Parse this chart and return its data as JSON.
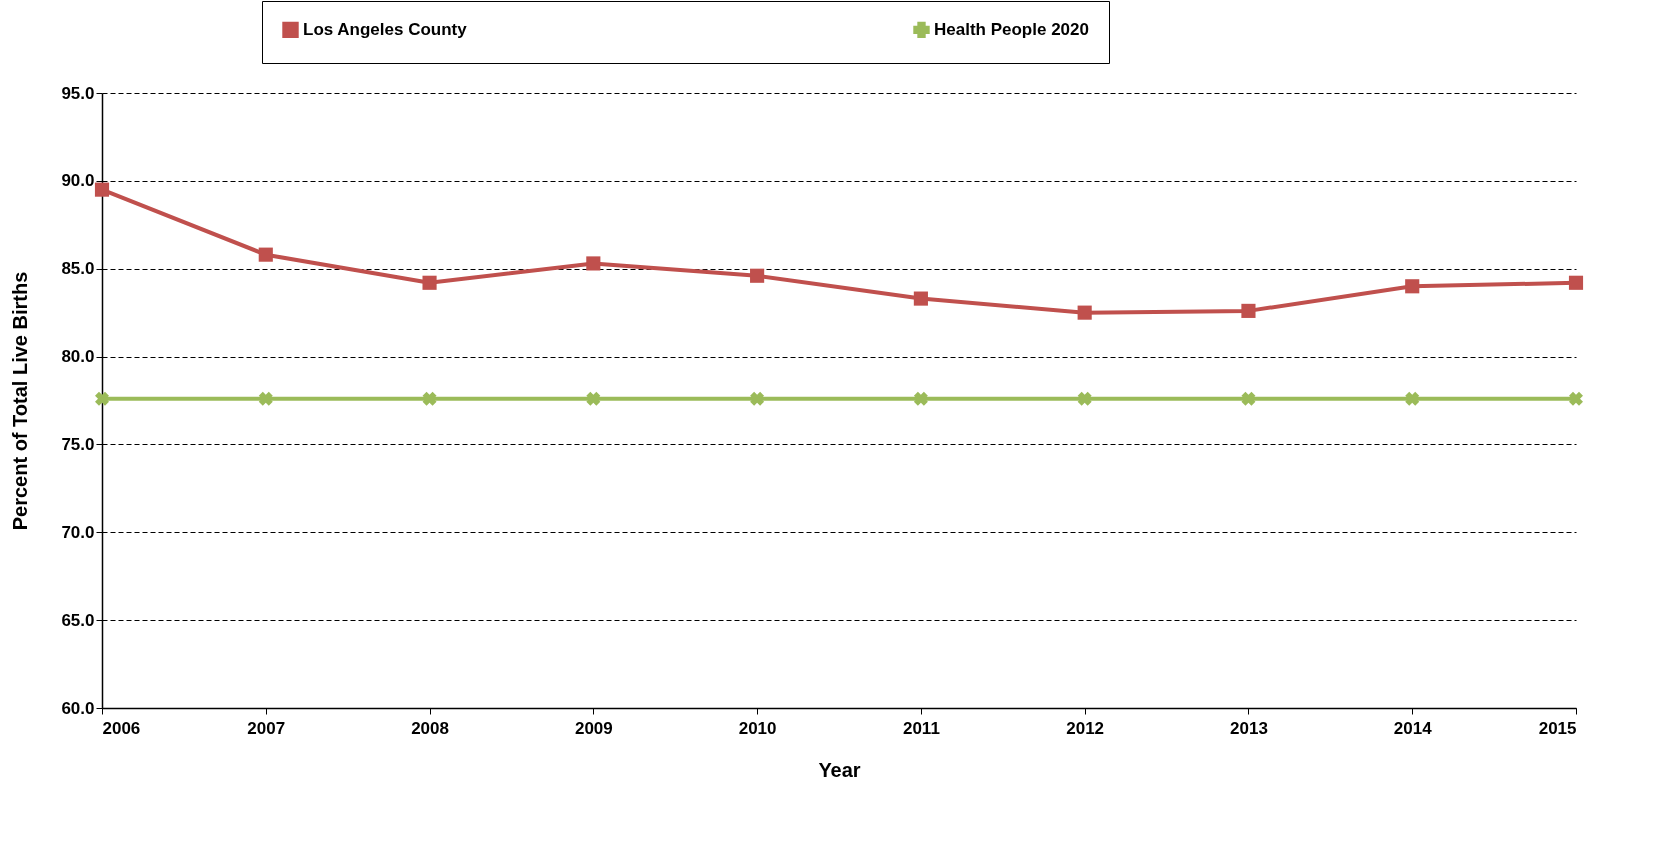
{
  "chart_data": {
    "type": "line",
    "xlabel": "Year",
    "ylabel": "Percent of Total Live Births",
    "categories": [
      "2006",
      "2007",
      "2008",
      "2009",
      "2010",
      "2011",
      "2012",
      "2013",
      "2014",
      "2015"
    ],
    "series": [
      {
        "name": "Los Angeles County",
        "color": "#c0504d",
        "marker": "square",
        "values": [
          89.5,
          85.8,
          84.2,
          85.3,
          84.6,
          83.3,
          82.5,
          82.6,
          84.0,
          84.2
        ]
      },
      {
        "name": "Health People 2020",
        "color": "#9bbb59",
        "marker": "cross",
        "values": [
          77.6,
          77.6,
          77.6,
          77.6,
          77.6,
          77.6,
          77.6,
          77.6,
          77.6,
          77.6
        ]
      }
    ],
    "ylim": [
      60,
      95
    ],
    "yticks": [
      {
        "value": 60,
        "label": "60.0"
      },
      {
        "value": 65,
        "label": "65.0"
      },
      {
        "value": 70,
        "label": "70.0"
      },
      {
        "value": 75,
        "label": "75.0"
      },
      {
        "value": 80,
        "label": "80.0"
      },
      {
        "value": 85,
        "label": "85.0"
      },
      {
        "value": 90,
        "label": "90.0"
      },
      {
        "value": 95,
        "label": "95.0"
      }
    ],
    "grid": "y",
    "legend": "top",
    "line_style": "solid"
  }
}
